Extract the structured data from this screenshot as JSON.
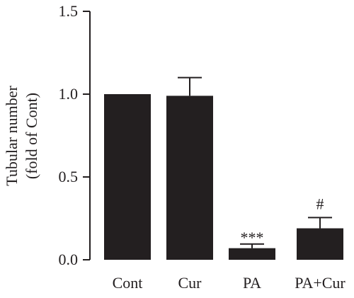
{
  "chart_data": {
    "type": "bar",
    "title": "",
    "xlabel": "",
    "ylabel_lines": [
      "Tubular number",
      "(fold of Cont)"
    ],
    "categories": [
      "Cont",
      "Cur",
      "PA",
      "PA+Cur"
    ],
    "values": [
      1.0,
      0.99,
      0.07,
      0.19
    ],
    "errors": [
      0.0,
      0.11,
      0.025,
      0.065
    ],
    "annotations": [
      "",
      "",
      "***",
      "#"
    ],
    "ylim": [
      0,
      1.5
    ],
    "yticks": [
      0.0,
      0.5,
      1.0,
      1.5
    ],
    "ytick_labels": [
      "0.0",
      "0.5",
      "1.0",
      "1.5"
    ],
    "grid": false,
    "legend": "none",
    "bar_color": "#231f20"
  }
}
